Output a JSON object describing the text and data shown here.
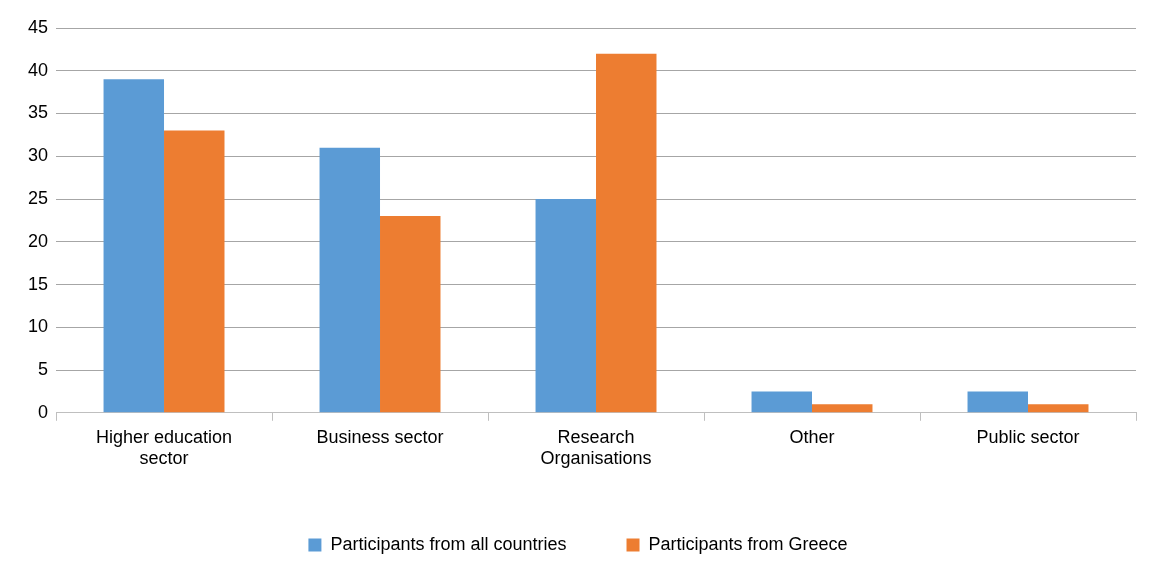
{
  "chart_data": {
    "type": "bar",
    "categories": [
      "Higher education sector",
      "Business sector",
      "Research Organisations",
      "Other",
      "Public sector"
    ],
    "series": [
      {
        "name": "Participants from all countries",
        "color": "#5b9bd5",
        "values": [
          39,
          31,
          25,
          2.5,
          2.5
        ]
      },
      {
        "name": "Participants from Greece",
        "color": "#ed7d31",
        "values": [
          33,
          23,
          42,
          1,
          1
        ]
      }
    ],
    "ylim": [
      0,
      45
    ],
    "yticks": [
      0,
      5,
      10,
      15,
      20,
      25,
      30,
      35,
      40,
      45
    ],
    "grid": "y",
    "legend": "bottom"
  }
}
